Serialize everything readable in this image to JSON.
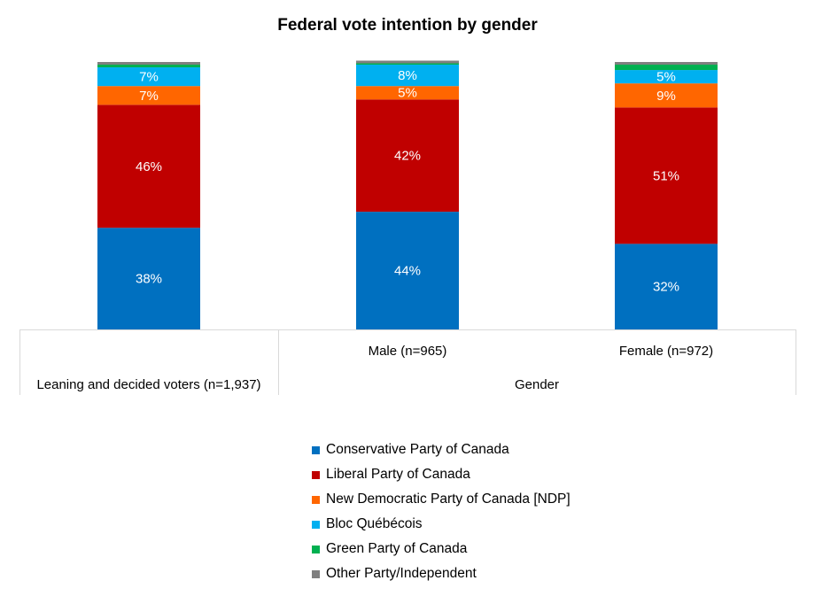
{
  "chart_data": {
    "type": "bar",
    "stacked": true,
    "title": "Federal vote intention by gender",
    "categories": [
      "",
      "Male (n=965)",
      "Female (n=972)"
    ],
    "groups": [
      {
        "label": "Leaning and decided voters (n=1,937)",
        "span": [
          0,
          0
        ]
      },
      {
        "label": "Gender",
        "span": [
          1,
          2
        ]
      }
    ],
    "ylim": [
      0,
      100
    ],
    "series": [
      {
        "name": "Conservative Party of Canada",
        "color": "#0070C0",
        "values": [
          38,
          44,
          32
        ],
        "labels": [
          "38%",
          "44%",
          "32%"
        ],
        "label_color": "#ffffff"
      },
      {
        "name": "Liberal Party of Canada",
        "color": "#C00000",
        "values": [
          46,
          42,
          51
        ],
        "labels": [
          "46%",
          "42%",
          "51%"
        ],
        "label_color": "#ffffff"
      },
      {
        "name": "New Democratic Party of Canada [NDP]",
        "color": "#FF6600",
        "values": [
          7,
          5,
          9
        ],
        "labels": [
          "7%",
          "5%",
          "9%"
        ],
        "label_color": "#ffffff"
      },
      {
        "name": "Bloc Québécois",
        "color": "#00B0F0",
        "values": [
          7,
          8,
          5
        ],
        "labels": [
          "7%",
          "8%",
          "5%"
        ],
        "label_color": "#ffffff"
      },
      {
        "name": "Green Party of Canada",
        "color": "#00B050",
        "values": [
          1,
          0.5,
          2
        ],
        "labels": [
          "",
          "",
          ""
        ],
        "label_color": "#ffffff"
      },
      {
        "name": "Other Party/Independent",
        "color": "#7F7F7F",
        "values": [
          1,
          1,
          1
        ],
        "labels": [
          "",
          "",
          ""
        ],
        "label_color": "#ffffff"
      }
    ],
    "legend_position": "bottom",
    "grid": false
  }
}
